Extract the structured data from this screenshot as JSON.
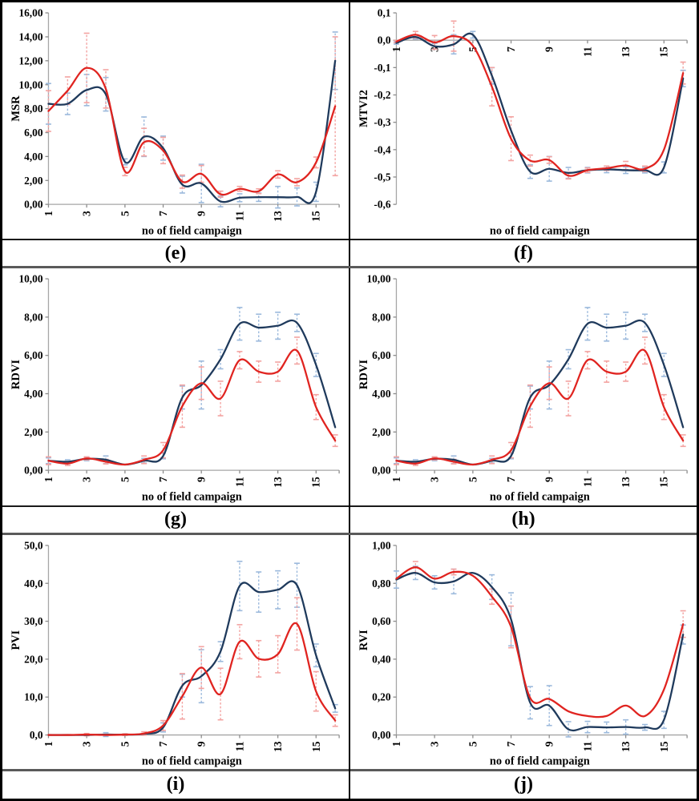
{
  "style": {
    "axis_color": "#a6a6a6",
    "tick_color": "#8c8c8c",
    "text_color": "#000000",
    "blue_line": "#1f3a5c",
    "red_line": "#e02420",
    "blue_error": "#9bb9dc",
    "red_error": "#f3a3a1"
  },
  "chart_data": [
    {
      "type": "line",
      "id": "e",
      "panel": "(e)",
      "ylabel": "MSR",
      "xlabel": "no of field campaign",
      "x": [
        1,
        2,
        3,
        4,
        5,
        6,
        7,
        8,
        9,
        10,
        11,
        12,
        13,
        14,
        15,
        16
      ],
      "xticks": [
        1,
        3,
        5,
        7,
        9,
        11,
        13,
        15
      ],
      "xtick_labels": [
        "1",
        "3",
        "5",
        "7",
        "9",
        "11",
        "13",
        "15"
      ],
      "ylim": [
        0,
        16
      ],
      "yticks": [
        0,
        2,
        4,
        6,
        8,
        10,
        12,
        14,
        16
      ],
      "ytick_labels": [
        "0,00",
        "2,00",
        "4,00",
        "6,00",
        "8,00",
        "10,00",
        "12,00",
        "14,00",
        "16,00"
      ],
      "x_axis": "bottom",
      "legend": "none",
      "series": [
        {
          "name": "series-blue",
          "color": "#1f3a5c",
          "err_color": "#9bb9dc",
          "values": [
            8.4,
            8.4,
            9.55,
            9.2,
            3.55,
            5.65,
            4.7,
            1.65,
            1.75,
            0.25,
            0.55,
            0.6,
            0.6,
            0.62,
            1.05,
            12.0
          ],
          "errors": [
            1.7,
            0.9,
            1.3,
            1.4,
            0.25,
            1.65,
            1.0,
            0.7,
            1.6,
            0.45,
            0.33,
            0.35,
            0.9,
            0.75,
            0.8,
            2.4
          ]
        },
        {
          "name": "series-red",
          "color": "#e02420",
          "err_color": "#f3a3a1",
          "values": [
            7.8,
            9.5,
            11.4,
            9.65,
            2.75,
            5.2,
            4.5,
            1.9,
            2.55,
            0.85,
            1.3,
            1.1,
            2.5,
            1.85,
            3.5,
            8.2
          ],
          "errors": [
            1.7,
            1.15,
            2.9,
            1.6,
            0.35,
            1.15,
            1.1,
            0.55,
            0.7,
            0.25,
            0.2,
            0.2,
            0.3,
            0.3,
            0.45,
            5.8
          ]
        }
      ]
    },
    {
      "type": "line",
      "id": "f",
      "panel": "(f)",
      "ylabel": "MTVI2",
      "xlabel": "no of field campaign",
      "x": [
        1,
        2,
        3,
        4,
        5,
        6,
        7,
        8,
        9,
        10,
        11,
        12,
        13,
        14,
        15,
        16
      ],
      "xticks": [
        1,
        3,
        5,
        7,
        9,
        11,
        13,
        15
      ],
      "xtick_labels": [
        "1",
        "3",
        "5",
        "7",
        "9",
        "11",
        "13",
        "15"
      ],
      "ylim": [
        -0.6,
        0.1
      ],
      "yticks": [
        0.1,
        0,
        -0.1,
        -0.2,
        -0.3,
        -0.4,
        -0.5,
        -0.6
      ],
      "ytick_labels": [
        "0,1",
        "0,0",
        "-0,1",
        "-0,2",
        "-0,3",
        "-0,4",
        "-0,5",
        "-0,6"
      ],
      "x_axis": "zero",
      "legend": "none",
      "series": [
        {
          "name": "series-blue",
          "color": "#1f3a5c",
          "err_color": "#9bb9dc",
          "values": [
            -0.01,
            0.012,
            -0.022,
            -0.015,
            0.02,
            -0.13,
            -0.33,
            -0.48,
            -0.47,
            -0.485,
            -0.475,
            -0.472,
            -0.475,
            -0.475,
            -0.465,
            -0.14
          ],
          "errors": [
            0.004,
            0.008,
            0.01,
            0.035,
            0.012,
            0.03,
            0,
            0.025,
            0.045,
            0.02,
            0.01,
            0.012,
            0.012,
            0.01,
            0.02,
            0.03
          ]
        },
        {
          "name": "series-red",
          "color": "#e02420",
          "err_color": "#f3a3a1",
          "values": [
            -0.005,
            0.02,
            -0.008,
            0.015,
            -0.02,
            -0.17,
            -0.36,
            -0.44,
            -0.438,
            -0.495,
            -0.475,
            -0.468,
            -0.458,
            -0.47,
            -0.4,
            -0.12
          ],
          "errors": [
            0.004,
            0.012,
            0.025,
            0.055,
            0,
            0.07,
            0.08,
            0.02,
            0.012,
            0.012,
            0.008,
            0.008,
            0.015,
            0.01,
            0,
            0.04
          ]
        }
      ]
    },
    {
      "type": "line",
      "id": "g",
      "panel": "(g)",
      "ylabel": "RDVI",
      "xlabel": "no of field campaign",
      "x": [
        1,
        2,
        3,
        4,
        5,
        6,
        7,
        8,
        9,
        10,
        11,
        12,
        13,
        14,
        15,
        16
      ],
      "xticks": [
        1,
        3,
        5,
        7,
        9,
        11,
        13,
        15
      ],
      "xtick_labels": [
        "1",
        "3",
        "5",
        "7",
        "9",
        "11",
        "13",
        "15"
      ],
      "ylim": [
        0,
        10
      ],
      "yticks": [
        0,
        2,
        4,
        6,
        8,
        10
      ],
      "ytick_labels": [
        "0,00",
        "2,00",
        "4,00",
        "6,00",
        "8,00",
        "10,00"
      ],
      "x_axis": "bottom",
      "legend": "none",
      "series": [
        {
          "name": "series-blue",
          "color": "#1f3a5c",
          "err_color": "#9bb9dc",
          "values": [
            0.5,
            0.45,
            0.6,
            0.55,
            0.3,
            0.5,
            0.75,
            3.8,
            4.45,
            5.8,
            7.65,
            7.45,
            7.55,
            7.7,
            5.5,
            2.25
          ],
          "errors": [
            0.15,
            0.1,
            0.1,
            0.2,
            0,
            0.12,
            0.15,
            0.6,
            1.25,
            0.5,
            0.85,
            0.7,
            0.7,
            0.45,
            0.6,
            0
          ]
        },
        {
          "name": "series-red",
          "color": "#e02420",
          "err_color": "#f3a3a1",
          "values": [
            0.5,
            0.35,
            0.62,
            0.45,
            0.3,
            0.55,
            1.05,
            3.35,
            4.55,
            3.75,
            5.75,
            5.15,
            5.15,
            6.25,
            3.3,
            1.55
          ],
          "errors": [
            0.2,
            0.1,
            0.08,
            0.12,
            0,
            0.2,
            0.4,
            1.1,
            0.85,
            0.9,
            0.45,
            0.55,
            0.5,
            0.7,
            0.65,
            0.3
          ]
        }
      ]
    },
    {
      "type": "line",
      "id": "h",
      "panel": "(h)",
      "ylabel": "RDVI",
      "xlabel": "no of field campaign",
      "x": [
        1,
        2,
        3,
        4,
        5,
        6,
        7,
        8,
        9,
        10,
        11,
        12,
        13,
        14,
        15,
        16
      ],
      "xticks": [
        1,
        3,
        5,
        7,
        9,
        11,
        13,
        15
      ],
      "xtick_labels": [
        "1",
        "3",
        "5",
        "7",
        "9",
        "11",
        "13",
        "15"
      ],
      "ylim": [
        0,
        10
      ],
      "yticks": [
        0,
        2,
        4,
        6,
        8,
        10
      ],
      "ytick_labels": [
        "0,00",
        "2,00",
        "4,00",
        "6,00",
        "8,00",
        "10,00"
      ],
      "x_axis": "bottom",
      "legend": "none",
      "series": [
        {
          "name": "series-blue",
          "color": "#1f3a5c",
          "err_color": "#9bb9dc",
          "values": [
            0.5,
            0.45,
            0.6,
            0.55,
            0.3,
            0.5,
            0.75,
            3.8,
            4.45,
            5.8,
            7.65,
            7.45,
            7.55,
            7.7,
            5.5,
            2.25
          ],
          "errors": [
            0.15,
            0.1,
            0.1,
            0.2,
            0,
            0.12,
            0.15,
            0.6,
            1.25,
            0.5,
            0.85,
            0.7,
            0.7,
            0.45,
            0.6,
            0
          ]
        },
        {
          "name": "series-red",
          "color": "#e02420",
          "err_color": "#f3a3a1",
          "values": [
            0.5,
            0.35,
            0.62,
            0.45,
            0.3,
            0.55,
            1.05,
            3.35,
            4.55,
            3.75,
            5.75,
            5.15,
            5.15,
            6.25,
            3.3,
            1.55
          ],
          "errors": [
            0.2,
            0.1,
            0.08,
            0.12,
            0,
            0.2,
            0.4,
            1.1,
            0.85,
            0.9,
            0.45,
            0.55,
            0.5,
            0.7,
            0.65,
            0.3
          ]
        }
      ]
    },
    {
      "type": "line",
      "id": "i",
      "panel": "(i)",
      "ylabel": "PVI",
      "xlabel": "no of field campaign",
      "x": [
        1,
        2,
        3,
        4,
        5,
        6,
        7,
        8,
        9,
        10,
        11,
        12,
        13,
        14,
        15,
        16
      ],
      "xticks": [
        1,
        3,
        5,
        7,
        9,
        11,
        13,
        15
      ],
      "xtick_labels": [
        "1",
        "3",
        "5",
        "7",
        "9",
        "11",
        "13",
        "15"
      ],
      "ylim": [
        0,
        50
      ],
      "yticks": [
        0,
        10,
        20,
        30,
        40,
        50
      ],
      "ytick_labels": [
        "0,0",
        "10,0",
        "20,0",
        "30,0",
        "40,0",
        "50,0"
      ],
      "x_axis": "bottom",
      "legend": "none",
      "series": [
        {
          "name": "series-blue",
          "color": "#1f3a5c",
          "err_color": "#9bb9dc",
          "values": [
            0,
            0,
            0,
            0.1,
            0.1,
            0.3,
            2.0,
            13.0,
            15.5,
            22.0,
            39.3,
            37.7,
            38.3,
            39.5,
            21.0,
            7.0
          ],
          "errors": [
            0,
            0,
            0,
            0.5,
            0,
            0,
            1.2,
            3.0,
            7.0,
            2.6,
            6.5,
            5.3,
            5.0,
            5.8,
            3.0,
            1.0
          ]
        },
        {
          "name": "series-red",
          "color": "#e02420",
          "err_color": "#f3a3a1",
          "values": [
            0,
            0,
            0.1,
            0,
            0.1,
            0.4,
            2.5,
            10.2,
            17.8,
            10.8,
            24.6,
            20.1,
            21.3,
            29.3,
            11.5,
            3.8
          ],
          "errors": [
            0,
            0,
            0.3,
            0,
            0.2,
            0.45,
            1.3,
            6.0,
            5.5,
            6.8,
            4.5,
            4.8,
            4.9,
            6.9,
            5.2,
            1.5
          ]
        }
      ]
    },
    {
      "type": "line",
      "id": "j",
      "panel": "(j)",
      "ylabel": "RVI",
      "xlabel": "no of field campaign",
      "x": [
        1,
        2,
        3,
        4,
        5,
        6,
        7,
        8,
        9,
        10,
        11,
        12,
        13,
        14,
        15,
        16
      ],
      "xticks": [
        1,
        3,
        5,
        7,
        9,
        11,
        13,
        15
      ],
      "xtick_labels": [
        "1",
        "3",
        "5",
        "7",
        "9",
        "11",
        "13",
        "15"
      ],
      "ylim": [
        0,
        1
      ],
      "yticks": [
        0,
        0.2,
        0.4,
        0.6,
        0.8,
        1.0
      ],
      "ytick_labels": [
        "0,00",
        "0,20",
        "0,40",
        "0,60",
        "0,80",
        "1,00"
      ],
      "x_axis": "bottom",
      "legend": "none",
      "series": [
        {
          "name": "series-blue",
          "color": "#1f3a5c",
          "err_color": "#9bb9dc",
          "values": [
            0.82,
            0.855,
            0.805,
            0.81,
            0.855,
            0.78,
            0.61,
            0.17,
            0.155,
            0.03,
            0.042,
            0.04,
            0.042,
            0.04,
            0.08,
            0.53
          ],
          "errors": [
            0.045,
            0.035,
            0.035,
            0.065,
            0,
            0.065,
            0.14,
            0.085,
            0.105,
            0.04,
            0.03,
            0.028,
            0.038,
            0.015,
            0.045,
            0.05
          ]
        },
        {
          "name": "series-red",
          "color": "#e02420",
          "err_color": "#f3a3a1",
          "values": [
            0.825,
            0.885,
            0.825,
            0.86,
            0.84,
            0.73,
            0.57,
            0.195,
            0.19,
            0.125,
            0.1,
            0.1,
            0.155,
            0.1,
            0.24,
            0.585
          ],
          "errors": [
            0,
            0.03,
            0,
            0.015,
            0,
            0.04,
            0.11,
            0,
            0,
            0,
            0,
            0,
            0,
            0,
            0,
            0.07
          ]
        }
      ]
    }
  ]
}
